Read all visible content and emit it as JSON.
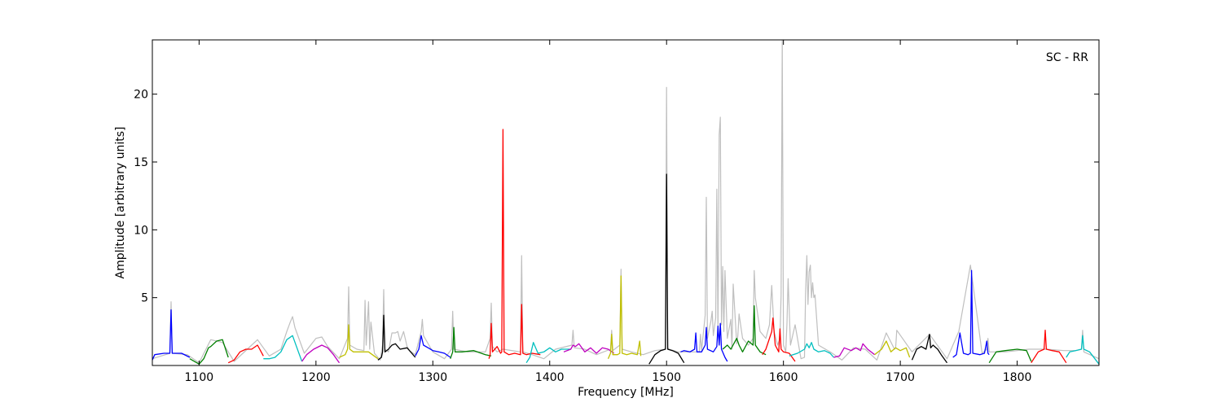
{
  "chart_data": {
    "type": "line",
    "title": "",
    "annotation": "SC - RR",
    "xlabel": "Frequency [MHz]",
    "ylabel": "Amplitude [arbitrary units]",
    "xlim": [
      1060,
      1870
    ],
    "ylim": [
      0,
      24
    ],
    "xticks": [
      1100,
      1200,
      1300,
      1400,
      1500,
      1600,
      1700,
      1800
    ],
    "yticks": [
      5,
      10,
      15,
      20
    ],
    "grid": false,
    "background": {
      "name": "raw",
      "color": "#bfbfbf",
      "x": [
        1060,
        1075,
        1076,
        1077,
        1090,
        1100,
        1110,
        1120,
        1130,
        1145,
        1150,
        1160,
        1170,
        1175,
        1178,
        1180,
        1182,
        1190,
        1200,
        1205,
        1210,
        1220,
        1227,
        1228,
        1229,
        1235,
        1241,
        1242,
        1243,
        1245,
        1246,
        1247,
        1250,
        1255,
        1257,
        1258,
        1259,
        1262,
        1265,
        1268,
        1270,
        1272,
        1275,
        1278,
        1280,
        1285,
        1290,
        1291,
        1292,
        1300,
        1310,
        1316,
        1317,
        1318,
        1330,
        1345,
        1349,
        1350,
        1351,
        1355,
        1360,
        1375,
        1376,
        1377,
        1385,
        1395,
        1405,
        1419,
        1420,
        1421,
        1430,
        1440,
        1452,
        1453,
        1454,
        1460,
        1461,
        1462,
        1470,
        1480,
        1490,
        1499,
        1500,
        1501,
        1502,
        1510,
        1520,
        1528,
        1529,
        1530,
        1533,
        1534,
        1535,
        1538,
        1539,
        1540,
        1542,
        1543,
        1544,
        1545,
        1546,
        1547,
        1548,
        1549,
        1550,
        1552,
        1555,
        1556,
        1557,
        1560,
        1561,
        1562,
        1565,
        1570,
        1574,
        1575,
        1576,
        1580,
        1585,
        1588,
        1590,
        1592,
        1595,
        1597,
        1598,
        1599,
        1600,
        1602,
        1603,
        1604,
        1606,
        1610,
        1615,
        1618,
        1619,
        1620,
        1621,
        1622,
        1623,
        1624,
        1625,
        1626,
        1627,
        1630,
        1640,
        1650,
        1660,
        1670,
        1680,
        1688,
        1695,
        1696,
        1697,
        1710,
        1725,
        1740,
        1750,
        1760,
        1770,
        1774,
        1775,
        1776,
        1790,
        1810,
        1825,
        1840,
        1850,
        1855,
        1856,
        1857,
        1870
      ],
      "y": [
        0.5,
        0.9,
        4.7,
        0.9,
        0.8,
        0.2,
        1.9,
        1.7,
        0.3,
        1.5,
        1.9,
        0.7,
        1.2,
        2.5,
        3.2,
        3.6,
        2.8,
        0.9,
        2.0,
        2.1,
        1.4,
        0.5,
        2.0,
        5.8,
        1.5,
        1.2,
        1.1,
        4.8,
        1.5,
        4.7,
        1.2,
        3.2,
        0.9,
        0.4,
        1.5,
        5.6,
        1.2,
        1.0,
        2.4,
        2.4,
        2.5,
        1.8,
        2.5,
        1.4,
        1.1,
        0.8,
        2.5,
        3.4,
        2.2,
        1.0,
        0.5,
        1.2,
        4.0,
        1.2,
        1.0,
        1.0,
        2.0,
        4.6,
        1.4,
        1.0,
        1.2,
        1.0,
        8.1,
        1.0,
        0.8,
        0.5,
        1.2,
        1.5,
        2.6,
        1.3,
        1.2,
        0.8,
        1.2,
        2.6,
        1.1,
        1.5,
        7.1,
        1.2,
        1.0,
        0.8,
        1.1,
        1.2,
        20.5,
        1.3,
        1.2,
        1.0,
        1.0,
        1.0,
        2.3,
        1.1,
        3.7,
        12.4,
        2.0,
        3.3,
        4.0,
        2.2,
        3.5,
        13.0,
        2.5,
        17.0,
        18.3,
        3.0,
        7.3,
        2.5,
        7.0,
        2.0,
        3.4,
        1.2,
        6.0,
        1.6,
        2.2,
        3.8,
        2.0,
        1.5,
        2.0,
        7.0,
        5.0,
        2.5,
        2.0,
        3.0,
        5.9,
        2.5,
        1.5,
        2.0,
        5.2,
        24.0,
        1.5,
        1.0,
        3.1,
        6.4,
        1.5,
        3.0,
        0.5,
        0.6,
        5.5,
        8.1,
        4.5,
        6.9,
        7.4,
        5.0,
        6.1,
        5.0,
        5.2,
        1.5,
        1.0,
        0.4,
        1.3,
        1.2,
        0.4,
        2.4,
        1.2,
        1.3,
        2.6,
        1.0,
        2.3,
        0.5,
        2.5,
        7.4,
        0.9,
        1.2,
        2.0,
        1.0,
        1.0,
        1.2,
        1.2,
        1.1,
        1.1,
        1.2,
        2.6,
        1.0,
        0.5
      ]
    },
    "series": [
      {
        "color": "#0000ff",
        "x": [
          1060,
          1062,
          1070,
          1075,
          1076,
          1077,
          1085,
          1092
        ],
        "y": [
          0.4,
          0.8,
          0.9,
          0.9,
          4.1,
          0.9,
          0.9,
          0.6
        ]
      },
      {
        "color": "#007f00",
        "x": [
          1092,
          1100,
          1104,
          1108,
          1110,
          1115,
          1120,
          1125
        ],
        "y": [
          0.5,
          0.1,
          0.5,
          1.3,
          1.4,
          1.8,
          1.9,
          0.6
        ]
      },
      {
        "color": "#ff0000",
        "x": [
          1125,
          1130,
          1135,
          1140,
          1145,
          1150,
          1155
        ],
        "y": [
          0.2,
          0.4,
          1.0,
          1.2,
          1.2,
          1.5,
          0.7
        ]
      },
      {
        "color": "#00bfbf",
        "x": [
          1155,
          1160,
          1165,
          1170,
          1175,
          1180,
          1185,
          1188
        ],
        "y": [
          0.5,
          0.5,
          0.6,
          1.0,
          1.9,
          2.2,
          1.0,
          0.3
        ]
      },
      {
        "color": "#bf00bf",
        "x": [
          1188,
          1192,
          1198,
          1205,
          1210,
          1215,
          1220
        ],
        "y": [
          0.3,
          0.8,
          1.2,
          1.5,
          1.3,
          0.8,
          0.2
        ]
      },
      {
        "color": "#bfbf00",
        "x": [
          1220,
          1225,
          1227,
          1228,
          1229,
          1232,
          1240,
          1245,
          1253
        ],
        "y": [
          0.6,
          0.8,
          1.2,
          3.0,
          1.2,
          1.0,
          1.0,
          1.0,
          0.5
        ]
      },
      {
        "color": "#000000",
        "x": [
          1253,
          1256,
          1257,
          1258,
          1259,
          1262,
          1265,
          1268,
          1272,
          1278,
          1282,
          1285
        ],
        "y": [
          0.4,
          0.6,
          1.0,
          3.7,
          1.0,
          1.2,
          1.5,
          1.6,
          1.2,
          1.3,
          0.9,
          0.6
        ]
      },
      {
        "color": "#0000ff",
        "x": [
          1285,
          1288,
          1290,
          1292,
          1296,
          1300,
          1305,
          1310,
          1315
        ],
        "y": [
          0.7,
          1.2,
          2.2,
          1.5,
          1.3,
          1.1,
          1.0,
          0.9,
          0.6
        ]
      },
      {
        "color": "#007f00",
        "x": [
          1315,
          1317,
          1318,
          1319,
          1325,
          1335,
          1345,
          1350
        ],
        "y": [
          0.5,
          1.0,
          2.8,
          1.0,
          1.0,
          1.1,
          0.8,
          0.7
        ]
      },
      {
        "color": "#ff0000",
        "x": [
          1348,
          1349,
          1350,
          1351,
          1355,
          1358,
          1359,
          1360,
          1361,
          1365,
          1370,
          1375,
          1376,
          1377,
          1380,
          1385,
          1392
        ],
        "y": [
          0.5,
          0.8,
          3.1,
          1.0,
          1.4,
          0.9,
          1.0,
          17.4,
          1.0,
          0.8,
          0.9,
          0.8,
          4.5,
          0.9,
          0.8,
          0.9,
          0.8
        ]
      },
      {
        "color": "#00bfbf",
        "x": [
          1380,
          1383,
          1386,
          1390,
          1395,
          1400,
          1405,
          1410,
          1418
        ],
        "y": [
          0.2,
          0.6,
          1.7,
          0.9,
          1.0,
          1.3,
          1.0,
          1.2,
          1.2
        ]
      },
      {
        "color": "#bf00bf",
        "x": [
          1412,
          1418,
          1420,
          1422,
          1425,
          1430,
          1435,
          1440,
          1445,
          1450,
          1455
        ],
        "y": [
          1.0,
          1.2,
          1.5,
          1.4,
          1.6,
          1.0,
          1.3,
          0.9,
          1.3,
          1.2,
          0.9
        ]
      },
      {
        "color": "#bfbf00",
        "x": [
          1450,
          1452,
          1453,
          1454,
          1458,
          1460,
          1461,
          1462,
          1466,
          1470,
          1475,
          1477,
          1478
        ],
        "y": [
          0.5,
          0.9,
          2.3,
          0.8,
          0.8,
          0.9,
          6.6,
          0.9,
          0.8,
          0.9,
          0.8,
          1.8,
          0.7
        ]
      },
      {
        "color": "#000000",
        "x": [
          1485,
          1490,
          1495,
          1499,
          1500,
          1501,
          1505,
          1510,
          1515
        ],
        "y": [
          0.1,
          0.8,
          1.1,
          1.2,
          14.1,
          1.2,
          1.1,
          0.9,
          0.2
        ]
      },
      {
        "color": "#0000ff",
        "x": [
          1512,
          1515,
          1520,
          1524,
          1525,
          1526,
          1530,
          1533,
          1534,
          1535,
          1540,
          1543,
          1544,
          1545,
          1546,
          1547,
          1550,
          1552
        ],
        "y": [
          1.0,
          1.1,
          1.0,
          1.2,
          2.4,
          1.0,
          1.0,
          1.5,
          2.8,
          1.2,
          1.0,
          1.4,
          2.9,
          1.5,
          3.1,
          1.2,
          0.6,
          0.3
        ]
      },
      {
        "color": "#007f00",
        "x": [
          1548,
          1552,
          1555,
          1560,
          1562,
          1565,
          1570,
          1574,
          1575,
          1576,
          1580,
          1585
        ],
        "y": [
          1.2,
          1.5,
          1.2,
          2.0,
          1.5,
          1.0,
          1.8,
          1.5,
          4.4,
          1.5,
          1.0,
          0.8
        ]
      },
      {
        "color": "#ff0000",
        "x": [
          1582,
          1585,
          1590,
          1591,
          1593,
          1596,
          1597,
          1598,
          1600,
          1605,
          1610
        ],
        "y": [
          0.8,
          1.2,
          2.5,
          3.5,
          1.5,
          1.0,
          2.7,
          1.2,
          1.0,
          0.9,
          0.3
        ]
      },
      {
        "color": "#00bfbf",
        "x": [
          1605,
          1612,
          1618,
          1620,
          1622,
          1624,
          1626,
          1630,
          1635,
          1640,
          1643
        ],
        "y": [
          0.7,
          0.9,
          1.2,
          1.6,
          1.3,
          1.7,
          1.2,
          1.0,
          1.1,
          0.9,
          0.6
        ]
      },
      {
        "color": "#bf00bf",
        "x": [
          1643,
          1648,
          1652,
          1658,
          1662,
          1666,
          1668,
          1672,
          1678
        ],
        "y": [
          0.6,
          0.7,
          1.3,
          1.1,
          1.3,
          1.1,
          1.6,
          1.2,
          0.8
        ]
      },
      {
        "color": "#bfbf00",
        "x": [
          1678,
          1684,
          1688,
          1692,
          1696,
          1700,
          1705,
          1708
        ],
        "y": [
          0.8,
          1.2,
          1.8,
          1.0,
          1.3,
          1.1,
          1.3,
          0.6
        ]
      },
      {
        "color": "#000000",
        "x": [
          1710,
          1714,
          1718,
          1722,
          1725,
          1726,
          1728,
          1732,
          1735,
          1740
        ],
        "y": [
          0.4,
          1.2,
          1.4,
          1.2,
          2.3,
          1.3,
          1.5,
          1.2,
          0.8,
          0.2
        ]
      },
      {
        "color": "#0000ff",
        "x": [
          1745,
          1748,
          1751,
          1754,
          1758,
          1760,
          1761,
          1762,
          1768,
          1772,
          1774,
          1775,
          1776
        ],
        "y": [
          0.6,
          0.8,
          2.4,
          0.9,
          0.8,
          0.9,
          7.0,
          0.9,
          0.8,
          0.9,
          1.8,
          0.9,
          0.8
        ]
      },
      {
        "color": "#007f00",
        "x": [
          1776,
          1782,
          1790,
          1800,
          1808,
          1812
        ],
        "y": [
          0.2,
          1.0,
          1.1,
          1.2,
          1.1,
          0.3
        ]
      },
      {
        "color": "#ff0000",
        "x": [
          1812,
          1818,
          1823,
          1824,
          1825,
          1830,
          1836,
          1842
        ],
        "y": [
          0.2,
          1.0,
          1.2,
          2.6,
          1.2,
          1.1,
          1.0,
          0.2
        ]
      },
      {
        "color": "#00bfbf",
        "x": [
          1842,
          1845,
          1850,
          1855,
          1856,
          1857,
          1862,
          1870
        ],
        "y": [
          0.6,
          1.0,
          1.1,
          1.2,
          2.2,
          1.2,
          1.0,
          0.1
        ]
      }
    ]
  }
}
